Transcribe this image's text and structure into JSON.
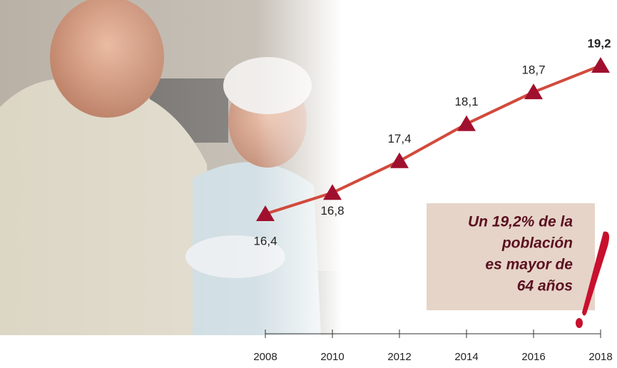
{
  "chart_data": {
    "type": "line",
    "x": [
      2008,
      2010,
      2012,
      2014,
      2016,
      2018
    ],
    "values": [
      16.4,
      16.8,
      17.4,
      18.1,
      18.7,
      19.2
    ],
    "value_labels": [
      "16,4",
      "16,8",
      "17,4",
      "18,1",
      "18,7",
      "19,2"
    ],
    "xticks": [
      2008,
      2010,
      2012,
      2014,
      2016,
      2018
    ],
    "color": "#d24a3c",
    "marker_color": "#a0102e",
    "annotation": [
      "Un 19,2% de la",
      "población",
      "es mayor de",
      "64 años"
    ]
  }
}
